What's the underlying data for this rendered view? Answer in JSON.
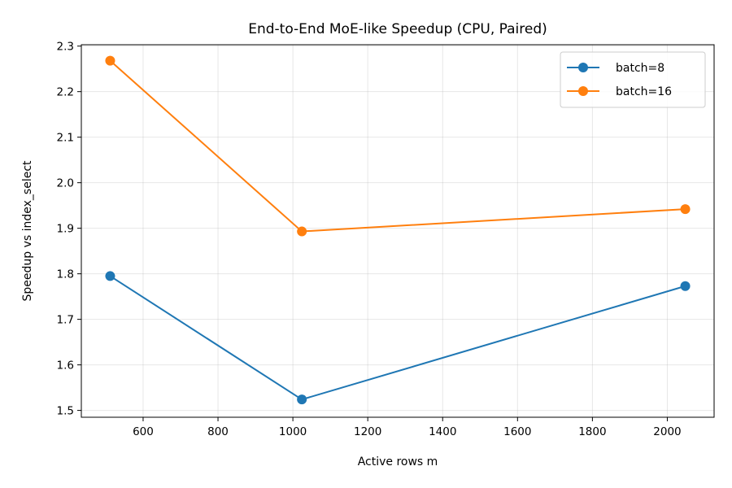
{
  "chart_data": {
    "type": "line",
    "title": "End-to-End MoE-like Speedup (CPU, Paired)",
    "xlabel": "Active rows m",
    "ylabel": "Speedup vs index_select",
    "xlim": [
      435,
      2125
    ],
    "ylim": [
      1.485,
      2.303
    ],
    "xticks": [
      600,
      800,
      1000,
      1200,
      1400,
      1600,
      1800,
      2000
    ],
    "yticks": [
      1.5,
      1.6,
      1.7,
      1.8,
      1.9,
      2.0,
      2.1,
      2.2,
      2.3
    ],
    "x_tick_labels": [
      "600",
      "800",
      "1000",
      "1200",
      "1400",
      "1600",
      "1800",
      "2000"
    ],
    "y_tick_labels": [
      "1.5",
      "1.6",
      "1.7",
      "1.8",
      "1.9",
      "2.0",
      "2.1",
      "2.2",
      "2.3"
    ],
    "grid": true,
    "legend_position": "top-right",
    "series": [
      {
        "name": "batch=8",
        "color": "#1f77b4",
        "marker": "circle",
        "x": [
          512,
          1024,
          2048
        ],
        "y": [
          1.795,
          1.524,
          1.773
        ]
      },
      {
        "name": "batch=16",
        "color": "#ff7f0e",
        "marker": "circle",
        "x": [
          512,
          1024,
          2048
        ],
        "y": [
          2.268,
          1.893,
          1.942
        ]
      }
    ]
  }
}
